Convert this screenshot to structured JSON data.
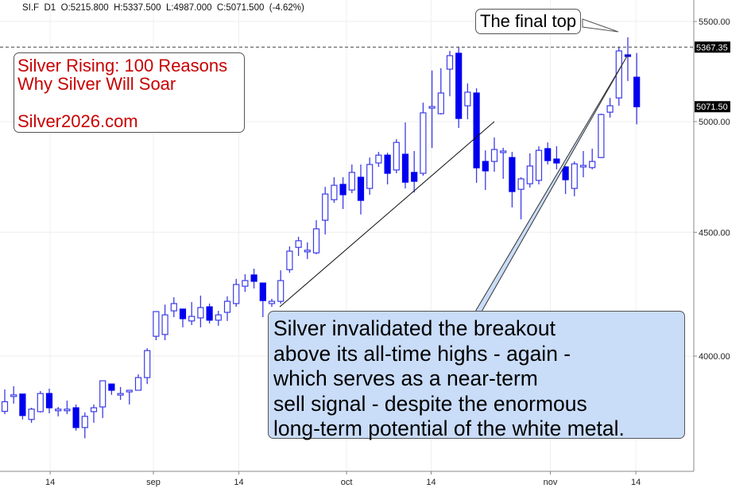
{
  "header": {
    "symbol": "SI.F",
    "timeframe": "D1",
    "open": "O:5215.800",
    "high": "H:5337.500",
    "low": "L:4987.000",
    "close": "C:5071.500",
    "change": "(-4.62%)"
  },
  "promo": {
    "line1": "Silver Rising: 100 Reasons",
    "line2": "Why Silver Will Soar",
    "line3": "Silver2026.com",
    "color": "#c80000"
  },
  "top_note": "The final top",
  "callout": {
    "lines": [
      "Silver invalidated the breakout",
      "above its all-time highs - again -",
      "which serves as a near-term",
      "sell signal - despite the enormous",
      "long-term potential of the white metal."
    ],
    "background": "#c9dcf8"
  },
  "chart_data": {
    "type": "candlestick",
    "scale": "log",
    "ylim": [
      3560,
      5640
    ],
    "y_ticks": [
      {
        "value": 5500,
        "label": "5500.00"
      },
      {
        "value": 5000,
        "label": "5000.00"
      },
      {
        "value": 4500,
        "label": "4500.00"
      },
      {
        "value": 4000,
        "label": "4000.00"
      }
    ],
    "x_ticks": [
      {
        "index": 5.1,
        "label": "14"
      },
      {
        "index": 16.7,
        "label": "sep"
      },
      {
        "index": 26.3,
        "label": "14"
      },
      {
        "index": 38.4,
        "label": "oct"
      },
      {
        "index": 47.9,
        "label": "14"
      },
      {
        "index": 61.3,
        "label": "nov"
      },
      {
        "index": 70.9,
        "label": "14"
      }
    ],
    "price_markers": [
      {
        "value": 5367.35,
        "label": "5367.35",
        "dashed_line": true
      },
      {
        "value": 5071.5,
        "label": "5071.50",
        "dashed_line": false
      }
    ],
    "colors": {
      "up_border": "#3b3be6",
      "down_fill": "#0000f0",
      "wick": "#3b3be6"
    },
    "trendline": {
      "from": {
        "index": 30.9,
        "price": 4192
      },
      "to": {
        "index": 55,
        "price": 5000
      }
    },
    "callout_pointer_target": {
      "index": 70,
      "price": 5328
    },
    "ohlc": [
      [
        3795,
        3875,
        3785,
        3830
      ],
      [
        3855,
        3887,
        3823,
        3855
      ],
      [
        3858,
        3858,
        3766,
        3780
      ],
      [
        3766,
        3808,
        3754,
        3803
      ],
      [
        3794,
        3869,
        3791,
        3860
      ],
      [
        3860,
        3878,
        3788,
        3808
      ],
      [
        3803,
        3811,
        3777,
        3803
      ],
      [
        3803,
        3834,
        3785,
        3803
      ],
      [
        3808,
        3820,
        3726,
        3737
      ],
      [
        3737,
        3791,
        3699,
        3777
      ],
      [
        3794,
        3820,
        3754,
        3808
      ],
      [
        3811,
        3907,
        3771,
        3907
      ],
      [
        3895,
        3895,
        3855,
        3872
      ],
      [
        3860,
        3884,
        3837,
        3860
      ],
      [
        3866,
        3872,
        3820,
        3872
      ],
      [
        3872,
        3931,
        3872,
        3919
      ],
      [
        3919,
        4030,
        3895,
        4021
      ],
      [
        4076,
        4173,
        4061,
        4173
      ],
      [
        4083,
        4201,
        4061,
        4160
      ],
      [
        4176,
        4230,
        4151,
        4205
      ],
      [
        4183,
        4183,
        4111,
        4145
      ],
      [
        4136,
        4211,
        4120,
        4154
      ],
      [
        4148,
        4237,
        4111,
        4189
      ],
      [
        4192,
        4205,
        4126,
        4139
      ],
      [
        4139,
        4176,
        4117,
        4160
      ],
      [
        4170,
        4234,
        4136,
        4214
      ],
      [
        4205,
        4305,
        4192,
        4282
      ],
      [
        4275,
        4324,
        4252,
        4298
      ],
      [
        4321,
        4347,
        4266,
        4295
      ],
      [
        4288,
        4288,
        4151,
        4217
      ],
      [
        4205,
        4224,
        4192,
        4214
      ],
      [
        4214,
        4340,
        4205,
        4298
      ],
      [
        4343,
        4440,
        4330,
        4420
      ],
      [
        4436,
        4481,
        4400,
        4464
      ],
      [
        4424,
        4457,
        4387,
        4424
      ],
      [
        4413,
        4552,
        4407,
        4515
      ],
      [
        4552,
        4699,
        4491,
        4667
      ],
      [
        4642,
        4742,
        4628,
        4706
      ],
      [
        4710,
        4742,
        4601,
        4664
      ],
      [
        4685,
        4800,
        4671,
        4764
      ],
      [
        4742,
        4800,
        4577,
        4639
      ],
      [
        4692,
        4832,
        4664,
        4800
      ],
      [
        4807,
        4858,
        4789,
        4843
      ],
      [
        4843,
        4854,
        4710,
        4760
      ],
      [
        4775,
        4917,
        4760,
        4902
      ],
      [
        4847,
        4996,
        4692,
        4720
      ],
      [
        4764,
        4862,
        4674,
        4724
      ],
      [
        4760,
        5091,
        4749,
        5042
      ],
      [
        5072,
        5249,
        4876,
        5072
      ],
      [
        5038,
        5261,
        5034,
        5138
      ],
      [
        5256,
        5348,
        5122,
        5324
      ],
      [
        5336,
        5368,
        4970,
        5015
      ],
      [
        5076,
        5185,
        5011,
        5142
      ],
      [
        5138,
        5161,
        4717,
        4785
      ],
      [
        4814,
        4865,
        4685,
        4771
      ],
      [
        4814,
        4925,
        4767,
        4869
      ],
      [
        4862,
        4877,
        4735,
        4862
      ],
      [
        4832,
        4858,
        4608,
        4678
      ],
      [
        4688,
        4742,
        4556,
        4735
      ],
      [
        4713,
        4851,
        4696,
        4793
      ],
      [
        4728,
        4884,
        4710,
        4865
      ],
      [
        4873,
        4902,
        4800,
        4818
      ],
      [
        4825,
        4884,
        4778,
        4807
      ],
      [
        4789,
        4793,
        4667,
        4731
      ],
      [
        4692,
        4814,
        4657,
        4803
      ],
      [
        4789,
        4862,
        4742,
        4796
      ],
      [
        4786,
        4873,
        4778,
        4814
      ],
      [
        4832,
        5038,
        4829,
        5034
      ],
      [
        5045,
        5114,
        5019,
        5076
      ],
      [
        5114,
        5368,
        5076,
        5348
      ],
      [
        5328,
        5418,
        5197,
        5320
      ],
      [
        5215.8,
        5337.5,
        4987,
        5071.5
      ]
    ]
  }
}
